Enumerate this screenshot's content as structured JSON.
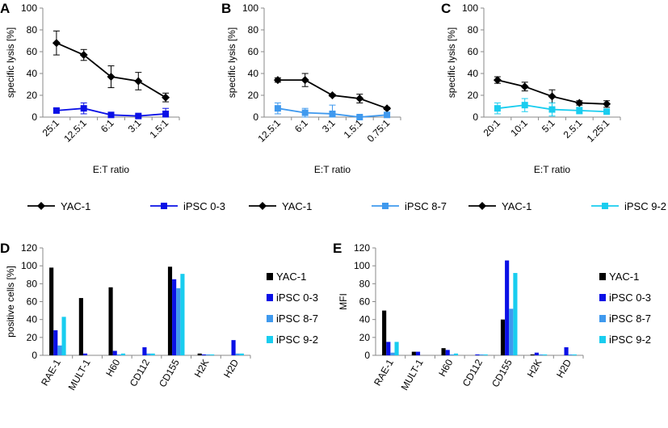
{
  "colors": {
    "yac": "#000000",
    "ipsc03": "#0a10e6",
    "ipsc87": "#3f99ee",
    "ipsc92": "#19cdef"
  },
  "chart_data": [
    {
      "id": "A",
      "type": "line",
      "panel_label": "A",
      "ylabel": "specific lysis [%]",
      "xlabel": "E:T ratio",
      "ylim": [
        0,
        100
      ],
      "yticks": [
        0,
        20,
        40,
        60,
        80,
        100
      ],
      "categories": [
        "25:1",
        "12.5:1",
        "6:1",
        "3:1",
        "1.5:1"
      ],
      "series": [
        {
          "name": "YAC-1",
          "color": "#000000",
          "marker": "diamond",
          "values": [
            68,
            57,
            37,
            33,
            18
          ],
          "errors": [
            11,
            5,
            10,
            8,
            4
          ]
        },
        {
          "name": "iPSC 0-3",
          "color": "#0a10e6",
          "marker": "square",
          "values": [
            6,
            8,
            2,
            1,
            3
          ],
          "errors": [
            2,
            5,
            1,
            1,
            5
          ]
        }
      ]
    },
    {
      "id": "B",
      "type": "line",
      "panel_label": "B",
      "ylabel": "specific lysis [%]",
      "xlabel": "E:T ratio",
      "ylim": [
        0,
        100
      ],
      "yticks": [
        0,
        20,
        40,
        60,
        80,
        100
      ],
      "categories": [
        "12.5:1",
        "6:1",
        "3:1",
        "1.5:1",
        "0.75:1"
      ],
      "series": [
        {
          "name": "YAC-1",
          "color": "#000000",
          "marker": "diamond",
          "values": [
            34,
            34,
            20,
            17,
            8
          ],
          "errors": [
            2,
            6,
            1,
            4,
            1
          ]
        },
        {
          "name": "iPSC 8-7",
          "color": "#3f99ee",
          "marker": "square",
          "values": [
            8,
            4,
            3,
            0,
            2
          ],
          "errors": [
            5,
            4,
            8,
            1,
            2
          ]
        }
      ]
    },
    {
      "id": "C",
      "type": "line",
      "panel_label": "C",
      "ylabel": "specific lysis [%]",
      "xlabel": "E:T ratio",
      "ylim": [
        0,
        100
      ],
      "yticks": [
        0,
        20,
        40,
        60,
        80,
        100
      ],
      "categories": [
        "20:1",
        "10:1",
        "5:1",
        "2.5:1",
        "1.25:1"
      ],
      "series": [
        {
          "name": "YAC-1",
          "color": "#000000",
          "marker": "diamond",
          "values": [
            34,
            28,
            19,
            13,
            12
          ],
          "errors": [
            3,
            4,
            6,
            2,
            3
          ]
        },
        {
          "name": "iPSC 9-2",
          "color": "#19cdef",
          "marker": "square",
          "values": [
            8,
            11,
            7,
            6,
            5
          ],
          "errors": [
            5,
            6,
            6,
            3,
            1
          ]
        }
      ]
    },
    {
      "id": "D",
      "type": "bar",
      "panel_label": "D",
      "ylabel": "positive cells [%]",
      "xlabel": "",
      "ylim": [
        0,
        120
      ],
      "yticks": [
        0,
        20,
        40,
        60,
        80,
        100,
        120
      ],
      "categories": [
        "RAE-1",
        "MULT-1",
        "H60",
        "CD112",
        "CD155",
        "H2K",
        "H2D"
      ],
      "series": [
        {
          "name": "YAC-1",
          "color": "#000000",
          "values": [
            98,
            64,
            76,
            0,
            99,
            2,
            0
          ]
        },
        {
          "name": "iPSC 0-3",
          "color": "#0a10e6",
          "values": [
            28,
            2,
            5,
            9,
            85,
            1,
            17
          ]
        },
        {
          "name": "iPSC 8-7",
          "color": "#3f99ee",
          "values": [
            11,
            0,
            1,
            2,
            75,
            1,
            2
          ]
        },
        {
          "name": "iPSC 9-2",
          "color": "#19cdef",
          "values": [
            43,
            0,
            2,
            2,
            91,
            1,
            2
          ]
        }
      ]
    },
    {
      "id": "E",
      "type": "bar",
      "panel_label": "E",
      "ylabel": "MFI",
      "xlabel": "",
      "ylim": [
        0,
        120
      ],
      "yticks": [
        0,
        20,
        40,
        60,
        80,
        100,
        120
      ],
      "categories": [
        "RAE-1",
        "MULT-1",
        "H60",
        "CD112",
        "CD155",
        "H2K",
        "H2D"
      ],
      "series": [
        {
          "name": "YAC-1",
          "color": "#000000",
          "values": [
            50,
            4,
            8,
            0,
            40,
            1,
            0
          ]
        },
        {
          "name": "iPSC 0-3",
          "color": "#0a10e6",
          "values": [
            15,
            4,
            6,
            1,
            106,
            3,
            9
          ]
        },
        {
          "name": "iPSC 8-7",
          "color": "#3f99ee",
          "values": [
            3,
            0,
            1,
            1,
            52,
            1,
            1
          ]
        },
        {
          "name": "iPSC 9-2",
          "color": "#19cdef",
          "values": [
            15,
            0,
            2,
            1,
            92,
            1,
            1
          ]
        }
      ]
    }
  ]
}
